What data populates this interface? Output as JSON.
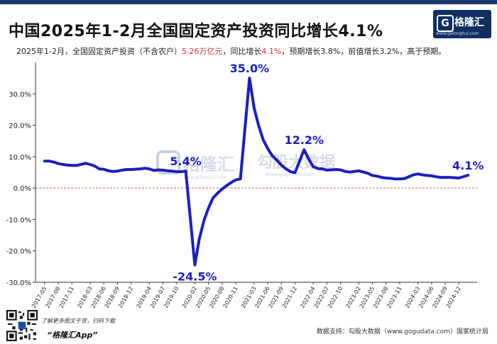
{
  "header": {
    "title": "中国2025年1-2月全国固定资产投资同比增长4.1%",
    "subtitle_parts": [
      {
        "text": "2025年1-2月，全国固定资产投资（不含农户）",
        "highlight": false
      },
      {
        "text": "5.26万亿元",
        "highlight": true
      },
      {
        "text": "，同比增长",
        "highlight": false
      },
      {
        "text": "4.1%",
        "highlight": true
      },
      {
        "text": "，预期增长3.8%，前值增长3.2%，高于预期。",
        "highlight": false
      }
    ]
  },
  "logo": {
    "mark": "G",
    "name": "格隆汇",
    "url": "www.gelonghui.com"
  },
  "watermarks": [
    "格隆汇",
    "www.gelonghui.com",
    "勾股大数据",
    "www.gogudata.com"
  ],
  "footer": {
    "promo": "了解更多图文干货，扫码下载",
    "app": "“格隆汇App”",
    "source": "数据支持：勾股大数据（www.gogudata.com）国家统计局"
  },
  "colors": {
    "line": "#1a1fc2",
    "zero_line": "#e0312e",
    "annotation": "#1a1fc2",
    "highlight": "#e0312e"
  },
  "chart_data": {
    "type": "line",
    "title": "",
    "xlabel": "",
    "ylabel": "",
    "ylim": [
      -30,
      40
    ],
    "yticks": [
      -30,
      -20,
      -10,
      0,
      10,
      20,
      30
    ],
    "ytick_labels": [
      "-30.0%",
      "-20.0%",
      "-10.0%",
      "0.0%",
      "10.0%",
      "20.0%",
      "30.0%"
    ],
    "grid": false,
    "xtick_labels": [
      "2017-05",
      "2017-08",
      "2017-11",
      "2018-03",
      "2018-06",
      "2018-09",
      "2018-12",
      "2019-04",
      "2019-07",
      "2019-10",
      "2020-02",
      "2020-05",
      "2020-08",
      "2020-11",
      "2021-03",
      "2021-06",
      "2021-09",
      "2021-12",
      "2022-04",
      "2022-07",
      "2022-10",
      "2023-02",
      "2023-05",
      "2023-08",
      "2023-11",
      "2024-03",
      "2024-06",
      "2024-09",
      "2024-12"
    ],
    "series": [
      {
        "values": [
          [
            "2017-05",
            8.6
          ],
          [
            "2017-06",
            8.6
          ],
          [
            "2017-07",
            8.3
          ],
          [
            "2017-08",
            7.8
          ],
          [
            "2017-09",
            7.5
          ],
          [
            "2017-10",
            7.3
          ],
          [
            "2017-11",
            7.2
          ],
          [
            "2017-12",
            7.2
          ],
          [
            "2018-02",
            7.9
          ],
          [
            "2018-03",
            7.5
          ],
          [
            "2018-04",
            7.0
          ],
          [
            "2018-05",
            6.1
          ],
          [
            "2018-06",
            6.0
          ],
          [
            "2018-07",
            5.5
          ],
          [
            "2018-08",
            5.3
          ],
          [
            "2018-09",
            5.4
          ],
          [
            "2018-10",
            5.7
          ],
          [
            "2018-11",
            5.9
          ],
          [
            "2018-12",
            5.9
          ],
          [
            "2019-02",
            6.1
          ],
          [
            "2019-03",
            6.3
          ],
          [
            "2019-04",
            6.1
          ],
          [
            "2019-05",
            5.6
          ],
          [
            "2019-06",
            5.8
          ],
          [
            "2019-07",
            5.7
          ],
          [
            "2019-08",
            5.5
          ],
          [
            "2019-09",
            5.4
          ],
          [
            "2019-10",
            5.2
          ],
          [
            "2019-11",
            5.2
          ],
          [
            "2019-12",
            5.4
          ],
          [
            "2020-02",
            -24.5
          ],
          [
            "2020-03",
            -16.1
          ],
          [
            "2020-04",
            -10.3
          ],
          [
            "2020-05",
            -6.3
          ],
          [
            "2020-06",
            -3.1
          ],
          [
            "2020-07",
            -1.6
          ],
          [
            "2020-08",
            -0.3
          ],
          [
            "2020-09",
            0.8
          ],
          [
            "2020-10",
            1.8
          ],
          [
            "2020-11",
            2.6
          ],
          [
            "2020-12",
            2.9
          ],
          [
            "2021-02",
            35.0
          ],
          [
            "2021-03",
            25.6
          ],
          [
            "2021-04",
            19.9
          ],
          [
            "2021-05",
            15.4
          ],
          [
            "2021-06",
            12.6
          ],
          [
            "2021-07",
            10.3
          ],
          [
            "2021-08",
            8.9
          ],
          [
            "2021-09",
            7.3
          ],
          [
            "2021-10",
            6.1
          ],
          [
            "2021-11",
            5.2
          ],
          [
            "2021-12",
            4.9
          ],
          [
            "2022-02",
            12.2
          ],
          [
            "2022-03",
            9.3
          ],
          [
            "2022-04",
            6.8
          ],
          [
            "2022-05",
            6.2
          ],
          [
            "2022-06",
            6.1
          ],
          [
            "2022-07",
            5.7
          ],
          [
            "2022-08",
            5.8
          ],
          [
            "2022-09",
            5.9
          ],
          [
            "2022-10",
            5.8
          ],
          [
            "2022-11",
            5.3
          ],
          [
            "2022-12",
            5.1
          ],
          [
            "2023-02",
            5.5
          ],
          [
            "2023-03",
            5.1
          ],
          [
            "2023-04",
            4.7
          ],
          [
            "2023-05",
            4.0
          ],
          [
            "2023-06",
            3.8
          ],
          [
            "2023-07",
            3.4
          ],
          [
            "2023-08",
            3.2
          ],
          [
            "2023-09",
            3.1
          ],
          [
            "2023-10",
            2.9
          ],
          [
            "2023-11",
            2.9
          ],
          [
            "2023-12",
            3.0
          ],
          [
            "2024-02",
            4.2
          ],
          [
            "2024-03",
            4.5
          ],
          [
            "2024-04",
            4.2
          ],
          [
            "2024-05",
            4.0
          ],
          [
            "2024-06",
            3.9
          ],
          [
            "2024-07",
            3.6
          ],
          [
            "2024-08",
            3.4
          ],
          [
            "2024-09",
            3.4
          ],
          [
            "2024-10",
            3.4
          ],
          [
            "2024-11",
            3.3
          ],
          [
            "2024-12",
            3.2
          ],
          [
            "2025-02",
            4.1
          ]
        ]
      }
    ],
    "annotations": [
      {
        "text": "5.4%",
        "x": "2019-12",
        "y": 5.4,
        "side": "above"
      },
      {
        "text": "-24.5%",
        "x": "2020-02",
        "y": -24.5,
        "side": "below"
      },
      {
        "text": "35.0%",
        "x": "2021-02",
        "y": 35.0,
        "side": "above"
      },
      {
        "text": "12.2%",
        "x": "2022-02",
        "y": 12.2,
        "side": "above"
      },
      {
        "text": "4.1%",
        "x": "2025-02",
        "y": 4.1,
        "side": "above"
      }
    ],
    "zero_line": true
  }
}
